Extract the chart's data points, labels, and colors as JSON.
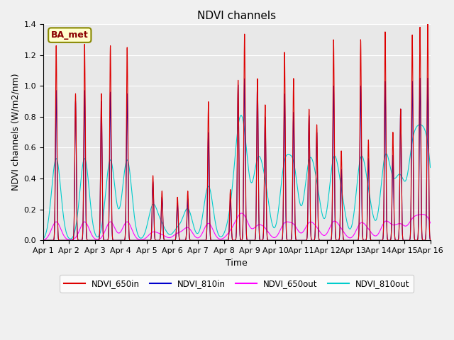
{
  "title": "NDVI channels",
  "xlabel": "Time",
  "ylabel": "NDVI channels (W/m2/nm)",
  "annotation": "BA_met",
  "ylim": [
    0,
    1.4
  ],
  "xlim": [
    0,
    15
  ],
  "x_tick_labels": [
    "Apr 1",
    "Apr 2",
    "Apr 3",
    "Apr 4",
    "Apr 5",
    "Apr 6",
    "Apr 7",
    "Apr 8",
    "Apr 9",
    "Apr 10",
    "Apr 11",
    "Apr 12",
    "Apr 13",
    "Apr 14",
    "Apr 15",
    "Apr 16"
  ],
  "colors": {
    "NDVI_650in": "#dd0000",
    "NDVI_810in": "#0000cc",
    "NDVI_650out": "#ff00ff",
    "NDVI_810out": "#00cccc"
  },
  "plot_bg_color": "#e8e8e8",
  "fig_bg_color": "#f0f0f0",
  "grid_color": "#ffffff",
  "annotation_box_facecolor": "#ffffcc",
  "annotation_box_edgecolor": "#888800",
  "title_fontsize": 11,
  "axis_label_fontsize": 9,
  "tick_fontsize": 8,
  "peak_times": [
    0.5,
    1.25,
    1.6,
    2.25,
    2.6,
    3.25,
    4.25,
    4.6,
    5.2,
    5.6,
    6.4,
    7.25,
    7.55,
    7.8,
    8.3,
    8.6,
    9.35,
    9.7,
    10.3,
    10.6,
    11.25,
    11.55,
    12.3,
    12.6,
    13.25,
    13.55,
    13.85,
    14.3,
    14.6,
    14.9
  ],
  "heights_650in": [
    1.26,
    0.95,
    1.27,
    0.95,
    1.26,
    1.25,
    0.42,
    0.32,
    0.28,
    0.32,
    0.9,
    0.33,
    1.04,
    1.34,
    1.05,
    0.88,
    1.22,
    1.05,
    0.85,
    0.75,
    1.3,
    0.58,
    1.3,
    0.65,
    1.35,
    0.7,
    0.85,
    1.33,
    1.38,
    1.4
  ],
  "heights_810in": [
    0.97,
    0.9,
    0.97,
    0.9,
    0.96,
    0.95,
    0.38,
    0.28,
    0.24,
    0.27,
    0.7,
    0.28,
    1.01,
    1.05,
    1.04,
    0.8,
    0.95,
    0.83,
    0.81,
    0.7,
    1.0,
    0.46,
    1.0,
    0.53,
    1.03,
    0.55,
    0.85,
    1.03,
    1.05,
    1.05
  ],
  "heights_810out": [
    0.53,
    0.0,
    0.53,
    0.0,
    0.52,
    0.52,
    0.22,
    0.08,
    0.07,
    0.2,
    0.35,
    0.1,
    0.52,
    0.5,
    0.45,
    0.28,
    0.45,
    0.44,
    0.45,
    0.27,
    0.48,
    0.22,
    0.48,
    0.22,
    0.5,
    0.2,
    0.35,
    0.5,
    0.5,
    0.5
  ],
  "heights_650out": [
    0.12,
    0.0,
    0.12,
    0.0,
    0.12,
    0.12,
    0.05,
    0.03,
    0.04,
    0.08,
    0.11,
    0.04,
    0.1,
    0.12,
    0.08,
    0.06,
    0.1,
    0.09,
    0.1,
    0.06,
    0.11,
    0.05,
    0.1,
    0.05,
    0.11,
    0.05,
    0.09,
    0.11,
    0.11,
    0.12
  ]
}
